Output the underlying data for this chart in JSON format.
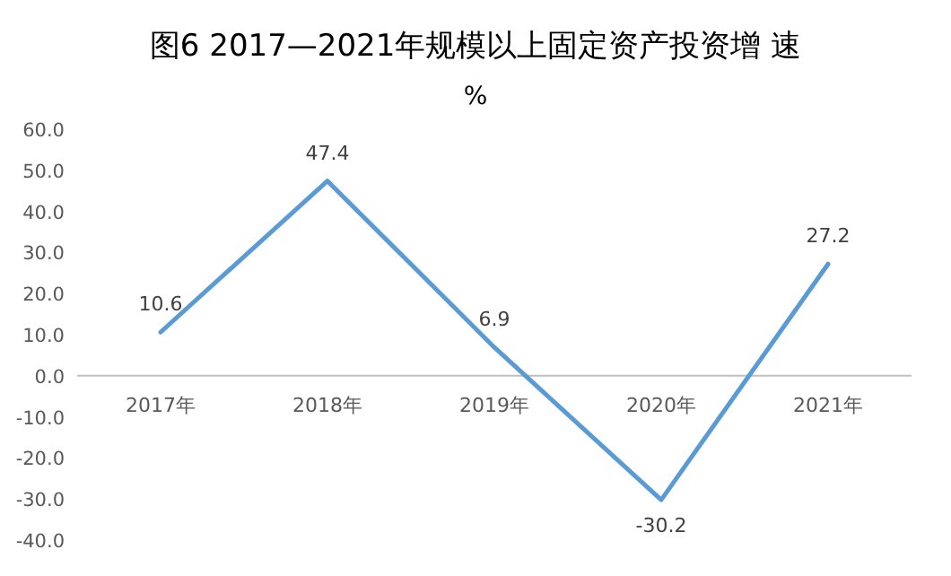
{
  "chart_data": {
    "type": "line",
    "title": "图6  2017—2021年规模以上固定资产投资增 速",
    "subtitle": "%",
    "categories": [
      "2017年",
      "2018年",
      "2019年",
      "2020年",
      "2021年"
    ],
    "series": [
      {
        "color": "#5b9bd5",
        "values": [
          10.6,
          47.4,
          6.9,
          -30.2,
          27.2
        ]
      }
    ],
    "ylim": [
      -40,
      60
    ],
    "yticks": [
      {
        "value": 60,
        "label": "60.0"
      },
      {
        "value": 50,
        "label": "50.0"
      },
      {
        "value": 40,
        "label": "40.0"
      },
      {
        "value": 30,
        "label": "30.0"
      },
      {
        "value": 20,
        "label": "20.0"
      },
      {
        "value": 10,
        "label": "10.0"
      },
      {
        "value": 0,
        "label": "0.0"
      },
      {
        "value": -10,
        "label": "-10.0"
      },
      {
        "value": -20,
        "label": "-20.0"
      },
      {
        "value": -30,
        "label": "-30.0"
      },
      {
        "value": -40,
        "label": "-40.0"
      }
    ],
    "data_labels": true,
    "grid": false,
    "marker": "none",
    "line_style": "solid"
  }
}
